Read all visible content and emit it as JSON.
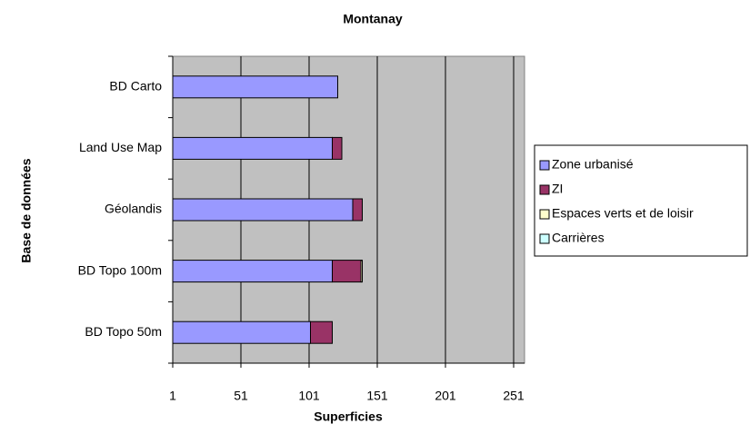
{
  "chart_data": {
    "type": "stacked_barh",
    "title": "Montanay",
    "x_label": "Superficies",
    "y_label": "Base de données",
    "categories": [
      "BD Carto",
      "Land Use Map",
      "Géolandis",
      "BD Topo 100m",
      "BD Topo 50m"
    ],
    "series": [
      {
        "name": "Zone urbanisé",
        "color": "#9999ff",
        "values": [
          122,
          118,
          133,
          118,
          102
        ]
      },
      {
        "name": "ZI",
        "color": "#993366",
        "values": [
          0,
          7,
          7,
          21,
          16
        ]
      },
      {
        "name": "Espaces verts et de loisir",
        "color": "#ffffcc",
        "values": [
          0,
          0,
          0,
          1,
          0
        ]
      },
      {
        "name": "Carrières",
        "color": "#ccffff",
        "values": [
          0,
          0,
          0,
          0,
          0
        ]
      }
    ],
    "xlim": [
      1,
      259
    ],
    "xticks": [
      1,
      51,
      101,
      151,
      201,
      251
    ],
    "grid": true,
    "legend": "right"
  }
}
